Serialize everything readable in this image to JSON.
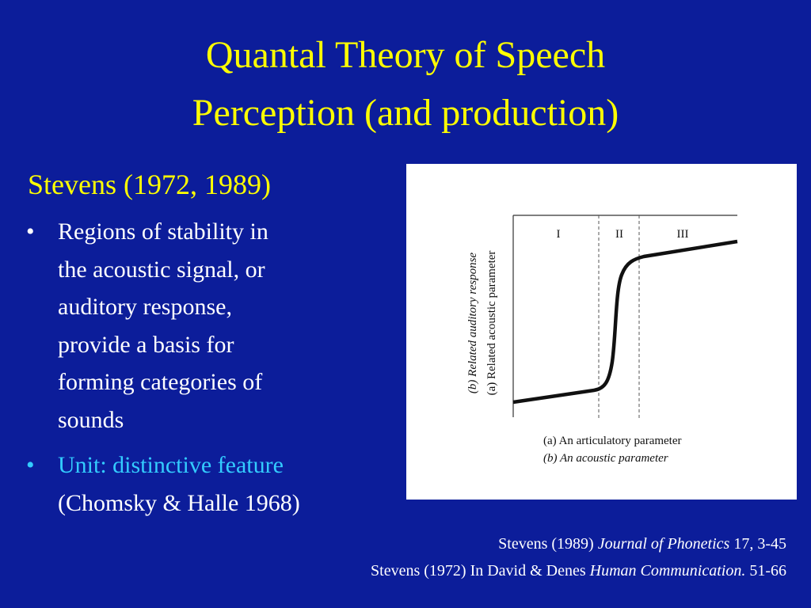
{
  "slide": {
    "title": [
      "Quantal Theory of Speech",
      "Perception (and production)"
    ],
    "subtitle": "Stevens (1972, 1989)",
    "bullets": [
      {
        "lines": [
          "Regions of stability in",
          "the acoustic signal, or",
          "auditory response,",
          "provide a basis for",
          "forming categories of",
          "sounds"
        ]
      },
      {
        "lines": [
          "Unit: distinctive feature",
          "(Chomsky & Halle 1968)"
        ]
      }
    ],
    "figure": {
      "regions": [
        "I",
        "II",
        "III"
      ],
      "y_labels": [
        "(b) Related auditory response",
        "(a) Related acoustic parameter"
      ],
      "x_labels": [
        "(a) An articulatory parameter",
        "(b) An acoustic parameter"
      ]
    },
    "citations": [
      [
        "Stevens (1989) ",
        "Journal of Phonetics",
        " 17, 3-45"
      ],
      [
        "Stevens (1972) In David & Denes ",
        "Human Communication.",
        " 51-66"
      ]
    ]
  }
}
